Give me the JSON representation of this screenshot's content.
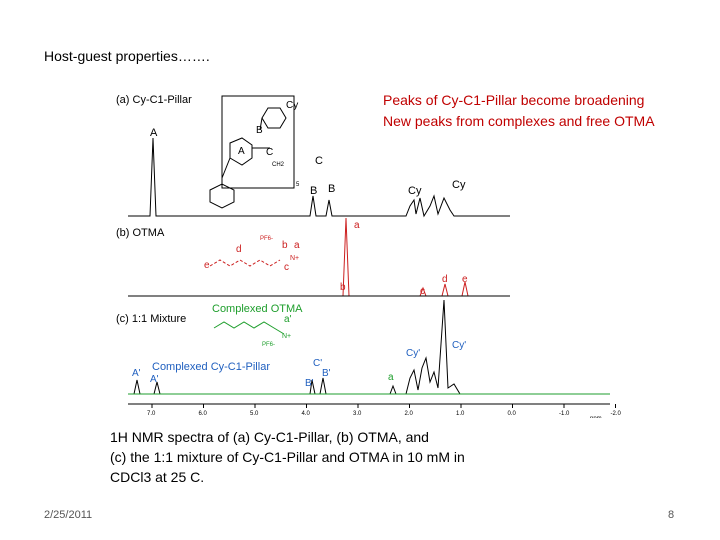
{
  "slide": {
    "title": "Host-guest properties…….",
    "annotation_lines": [
      "Peaks of Cy-C1-Pillar become broadening",
      "New peaks from complexes and free OTMA"
    ],
    "caption_lines": [
      "1H NMR spectra of (a) Cy-C1-Pillar, (b) OTMA, and",
      "(c) the 1:1 mixture of Cy-C1-Pillar and OTMA in 10 mM in",
      "CDCl3 at 25 C."
    ],
    "date": "2/25/2011",
    "page_number": "8"
  },
  "figure": {
    "spectrum_labels": {
      "a": "(a) Cy-C1-Pillar",
      "b": "(b) OTMA",
      "c": "(c) 1:1 Mixture"
    },
    "complexed_otma": "Complexed OTMA",
    "complexed_pillar": "Complexed Cy-C1-Pillar",
    "peak_labels_a": [
      "A",
      "C",
      "B",
      "B",
      "Cy",
      "Cy"
    ],
    "peak_labels_b": [
      "a",
      "b",
      "c",
      "d",
      "e"
    ],
    "peak_labels_c": [
      "A'",
      "A'",
      "C'",
      "B'",
      "B'",
      "a",
      "Cy'",
      "Cy'"
    ],
    "structure_labels_a": [
      "Cy",
      "B",
      "A",
      "C",
      "CH2",
      "5"
    ],
    "structure_labels_b": [
      "PF6-",
      "d",
      "b",
      "a",
      "e",
      "c",
      "N+"
    ],
    "structure_labels_c": [
      "a'",
      "N+",
      "PF6-"
    ],
    "ppm_ticks": [
      "7.0",
      "6.0",
      "5.0",
      "4.0",
      "3.0",
      "2.0",
      "1.0",
      "0.0",
      "-1.0",
      "-2.0"
    ],
    "ppm_unit": "ppm",
    "colors": {
      "pillar": "#1f5fbf",
      "otma": "#1e9e2c",
      "free_otma": "#cc1f1f",
      "trace": "#000000"
    }
  }
}
